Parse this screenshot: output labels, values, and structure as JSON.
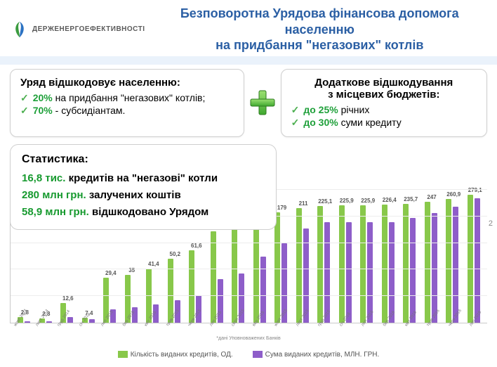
{
  "colors": {
    "title": "#2b5fa4",
    "accent_bar": "#eaf2fb",
    "green": "#1fa03a",
    "tick": "#4caf50",
    "panel_border": "#cfcfcf",
    "bar_green": "#88c84a",
    "bar_purple": "#8e5ec9",
    "grid": "#ededed"
  },
  "logo_text": "ДЕРЖЕНЕРГОЕФЕКТИВНОСТІ",
  "title_line1": "Безповоротна Урядова фінансова допомога населенню",
  "title_line2": "на придбання \"негазових\" котлів",
  "left_panel": {
    "heading": "Уряд відшкодовує населенню:",
    "items": [
      {
        "pct": "20%",
        "rest": " на придбання \"негазових\" котлів;"
      },
      {
        "pct": "70%",
        "rest": " - субсидіантам."
      }
    ]
  },
  "right_panel": {
    "heading_l1": "Додаткове відшкодування",
    "heading_l2": "з місцевих бюджетів:",
    "items": [
      {
        "pct": "до 25%",
        "rest": " річних"
      },
      {
        "pct": "до 30%",
        "rest": " суми кредиту"
      }
    ]
  },
  "stats": {
    "heading": "Статистика:",
    "lines": [
      {
        "val": "16,8 тис.",
        "rest": " кредитів на \"негазові\" котли"
      },
      {
        "val": "280 млн грн.",
        "rest": " залучених коштів"
      },
      {
        "val": "58,9 млн грн.",
        "rest": " відшкодовано Урядом"
      }
    ]
  },
  "chart": {
    "type": "bar",
    "ymax_purple": 300,
    "ymax_green": 3500,
    "grid_steps": 5,
    "bar_colors": {
      "count": "#88c84a",
      "sum": "#8e5ec9"
    },
    "legend": {
      "count": "Кількість виданих кредитів, ОД.",
      "sum": "Сума виданих кредитів, МЛН. ГРН."
    },
    "source": "*дані Уповноважених Банків",
    "periods": [
      {
        "x": "жовт 2014",
        "count": 140,
        "sum": 2.8
      },
      {
        "x": "лист 2014",
        "count": 120,
        "sum": 2.8
      },
      {
        "x": "груд 2014",
        "count": 510,
        "sum": 12.6
      },
      {
        "x": "січ 2015",
        "count": 130,
        "sum": 7.4
      },
      {
        "x": "лют 2015",
        "count": 1180,
        "sum": 29.4
      },
      {
        "x": "бер 2015",
        "count": 1250,
        "sum": 35.0
      },
      {
        "x": "квіт 2015",
        "count": 1410,
        "sum": 41.4
      },
      {
        "x": "трав 2015",
        "count": 1680,
        "sum": 50.2
      },
      {
        "x": "черв 2015",
        "count": 1900,
        "sum": 61.6
      },
      {
        "x": "лип 2015",
        "count": 2400,
        "sum": 98.1
      },
      {
        "x": "серп 2015",
        "count": 2650,
        "sum": 110.2
      },
      {
        "x": "вер 2015",
        "count": 2780,
        "sum": 149.0
      },
      {
        "x": "жовт 2015",
        "count": 2900,
        "sum": 179.0
      },
      {
        "x": "лист 2015",
        "count": 3000,
        "sum": 211.0
      },
      {
        "x": "груд 2015",
        "count": 3050,
        "sum": 225.1
      },
      {
        "x": "січ 2016",
        "count": 3070,
        "sum": 225.9
      },
      {
        "x": "лют 2016",
        "count": 3080,
        "sum": 225.9
      },
      {
        "x": "бер 2016",
        "count": 3090,
        "sum": 226.4
      },
      {
        "x": "квіт 2016",
        "count": 3120,
        "sum": 235.7
      },
      {
        "x": "трав 2016",
        "count": 3170,
        "sum": 247.0
      },
      {
        "x": "черв 2016",
        "count": 3250,
        "sum": 260.9
      },
      {
        "x": "лип 2016",
        "count": 3350,
        "sum": 279.1
      }
    ]
  },
  "page_number": "2"
}
